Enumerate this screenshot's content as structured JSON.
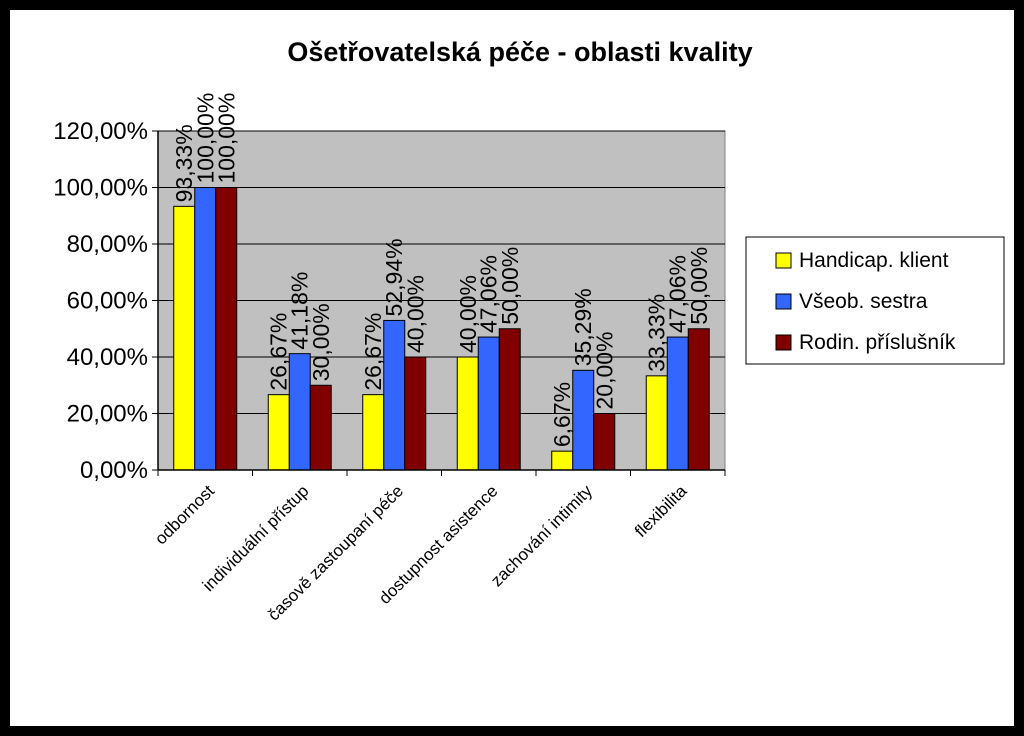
{
  "chart_data": {
    "type": "bar",
    "title": "Ošetřovatelská péče - oblasti kvality",
    "categories": [
      "odbornost",
      "individuální přístup",
      "časově zastoupaní péče",
      "dostupnost asistence",
      "zachování intimity",
      "flexibilita"
    ],
    "series": [
      {
        "name": "Handicap. klient",
        "color": "#FFFF00",
        "values": [
          93.33,
          26.67,
          26.67,
          40.0,
          6.67,
          33.33
        ],
        "labels": [
          "93,33%",
          "26,67%",
          "26,67%",
          "40,00%",
          "6,67%",
          "33,33%"
        ]
      },
      {
        "name": "Všeob. sestra",
        "color": "#3366FF",
        "values": [
          100.0,
          41.18,
          52.94,
          47.06,
          35.29,
          47.06
        ],
        "labels": [
          "100,00%",
          "41,18%",
          "52,94%",
          "47,06%",
          "35,29%",
          "47,06%"
        ]
      },
      {
        "name": "Rodin. příslušník",
        "color": "#800000",
        "values": [
          100.0,
          30.0,
          40.0,
          50.0,
          20.0,
          50.0
        ],
        "labels": [
          "100,00%",
          "30,00%",
          "40,00%",
          "50,00%",
          "20,00%",
          "50,00%"
        ]
      }
    ],
    "ylim": [
      0,
      120
    ],
    "yticks": [
      0,
      20,
      40,
      60,
      80,
      100,
      120
    ],
    "ytick_labels": [
      "0,00%",
      "20,00%",
      "40,00%",
      "60,00%",
      "80,00%",
      "100,00%",
      "120,00%"
    ],
    "grid": true,
    "plot_background": "#C0C0C0",
    "legend_position": "right"
  }
}
